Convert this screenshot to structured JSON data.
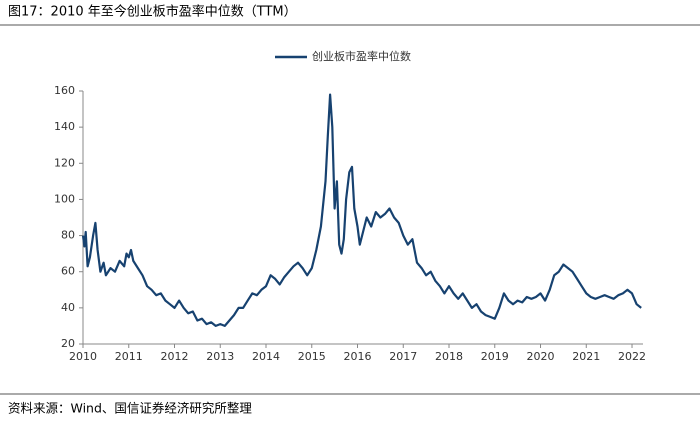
{
  "chart_data": {
    "type": "line",
    "title": "图17：2010 年至今创业板市盈率中位数（TTM）",
    "source": "资料来源：Wind、国信证券经济研究所整理",
    "x": [
      2010.0,
      2010.03,
      2010.06,
      2010.1,
      2010.15,
      2010.22,
      2010.27,
      2010.32,
      2010.38,
      2010.45,
      2010.5,
      2010.6,
      2010.7,
      2010.8,
      2010.9,
      2010.95,
      2011.0,
      2011.05,
      2011.1,
      2011.2,
      2011.3,
      2011.4,
      2011.5,
      2011.6,
      2011.7,
      2011.8,
      2011.9,
      2012.0,
      2012.1,
      2012.2,
      2012.3,
      2012.4,
      2012.5,
      2012.6,
      2012.7,
      2012.8,
      2012.9,
      2013.0,
      2013.1,
      2013.2,
      2013.3,
      2013.4,
      2013.5,
      2013.6,
      2013.7,
      2013.8,
      2013.9,
      2014.0,
      2014.1,
      2014.2,
      2014.3,
      2014.4,
      2014.5,
      2014.6,
      2014.7,
      2014.8,
      2014.9,
      2015.0,
      2015.1,
      2015.2,
      2015.3,
      2015.35,
      2015.4,
      2015.45,
      2015.5,
      2015.55,
      2015.6,
      2015.65,
      2015.7,
      2015.75,
      2015.82,
      2015.88,
      2015.93,
      2016.0,
      2016.05,
      2016.1,
      2016.2,
      2016.3,
      2016.4,
      2016.5,
      2016.6,
      2016.7,
      2016.8,
      2016.9,
      2017.0,
      2017.1,
      2017.2,
      2017.3,
      2017.4,
      2017.5,
      2017.6,
      2017.7,
      2017.8,
      2017.9,
      2018.0,
      2018.1,
      2018.2,
      2018.3,
      2018.4,
      2018.5,
      2018.6,
      2018.7,
      2018.8,
      2018.9,
      2019.0,
      2019.1,
      2019.2,
      2019.3,
      2019.4,
      2019.5,
      2019.6,
      2019.7,
      2019.8,
      2019.9,
      2020.0,
      2020.1,
      2020.2,
      2020.3,
      2020.4,
      2020.5,
      2020.6,
      2020.7,
      2020.8,
      2020.9,
      2021.0,
      2021.1,
      2021.2,
      2021.3,
      2021.4,
      2021.5,
      2021.6,
      2021.7,
      2021.8,
      2021.9,
      2022.0,
      2022.1,
      2022.2
    ],
    "series": [
      {
        "name": "创业板市盈率中位数",
        "color": "#174270",
        "values": [
          80,
          74,
          82,
          63,
          68,
          80,
          87,
          72,
          60,
          65,
          58,
          62,
          60,
          66,
          63,
          70,
          68,
          72,
          66,
          62,
          58,
          52,
          50,
          47,
          48,
          44,
          42,
          40,
          44,
          40,
          37,
          38,
          33,
          34,
          31,
          32,
          30,
          31,
          30,
          33,
          36,
          40,
          40,
          44,
          48,
          47,
          50,
          52,
          58,
          56,
          53,
          57,
          60,
          63,
          65,
          62,
          58,
          62,
          72,
          85,
          110,
          135,
          158,
          140,
          95,
          110,
          75,
          70,
          78,
          100,
          115,
          118,
          95,
          85,
          75,
          80,
          90,
          85,
          93,
          90,
          92,
          95,
          90,
          87,
          80,
          75,
          78,
          65,
          62,
          58,
          60,
          55,
          52,
          48,
          52,
          48,
          45,
          48,
          44,
          40,
          42,
          38,
          36,
          35,
          34,
          40,
          48,
          44,
          42,
          44,
          43,
          46,
          45,
          46,
          48,
          44,
          50,
          58,
          60,
          64,
          62,
          60,
          56,
          52,
          48,
          46,
          45,
          46,
          47,
          46,
          45,
          47,
          48,
          50,
          48,
          42,
          40
        ]
      }
    ],
    "xlim": [
      2010,
      2022.24
    ],
    "xticks": [
      2010,
      2011,
      2012,
      2013,
      2014,
      2015,
      2016,
      2017,
      2018,
      2019,
      2020,
      2021,
      2022
    ],
    "ylim": [
      20,
      160
    ],
    "yticks": [
      20,
      40,
      60,
      80,
      100,
      120,
      140,
      160
    ]
  }
}
